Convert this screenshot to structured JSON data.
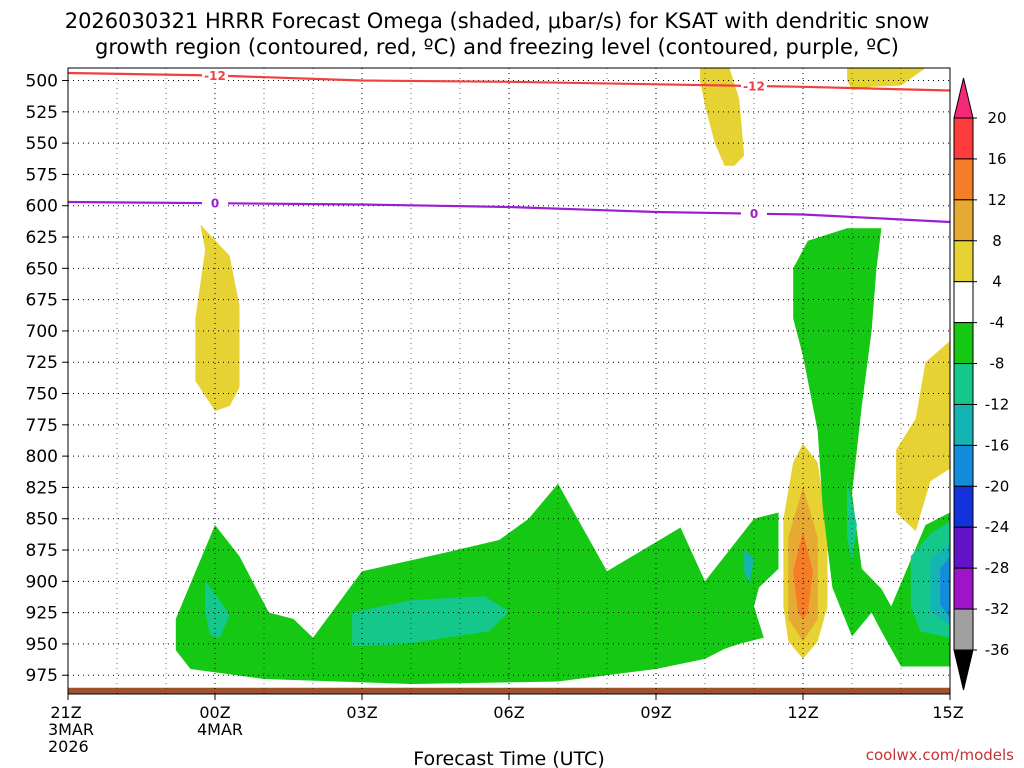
{
  "chart_data": {
    "type": "time-height cross-section",
    "title_line1": "2026030321 HRRR Forecast Omega (shaded, μbar/s) for KSAT with dendritic snow",
    "title_line2": "growth region (contoured, red, ºC) and freezing level (contoured, purple, ºC)",
    "xlabel": "Forecast Time (UTC)",
    "credit": "coolwx.com/models",
    "x_hours": [
      0,
      3,
      6,
      9,
      12,
      15,
      18
    ],
    "x_ticks": [
      {
        "hour": 0,
        "line1": "21Z",
        "line2": "3MAR",
        "line3": "2026"
      },
      {
        "hour": 3,
        "line1": "00Z",
        "line2": "4MAR",
        "line3": ""
      },
      {
        "hour": 6,
        "line1": "03Z",
        "line2": "",
        "line3": ""
      },
      {
        "hour": 9,
        "line1": "06Z",
        "line2": "",
        "line3": ""
      },
      {
        "hour": 12,
        "line1": "09Z",
        "line2": "",
        "line3": ""
      },
      {
        "hour": 15,
        "line1": "12Z",
        "line2": "",
        "line3": ""
      },
      {
        "hour": 18,
        "line1": "15Z",
        "line2": "",
        "line3": ""
      }
    ],
    "y_ticks": [
      500,
      525,
      550,
      575,
      600,
      625,
      650,
      675,
      700,
      725,
      750,
      775,
      800,
      825,
      850,
      875,
      900,
      925,
      950,
      975
    ],
    "ylim": [
      490,
      990
    ],
    "colorbar": {
      "labels": [
        "20",
        "16",
        "12",
        "8",
        "4",
        "-4",
        "-8",
        "-12",
        "-16",
        "-20",
        "-24",
        "-28",
        "-32",
        "-36"
      ],
      "colors": [
        "#f52878",
        "#ff3c3c",
        "#f57d28",
        "#e6aa32",
        "#e6d232",
        "#ffffff",
        "#14c814",
        "#14c88c",
        "#14b4b4",
        "#148cdc",
        "#1432dc",
        "#6414c8",
        "#a014c8",
        "#a0a0a0",
        "#000000"
      ]
    },
    "contours": [
      {
        "name": "dendritic -12C",
        "color": "#f04040",
        "label": "-12",
        "points": [
          [
            0,
            494
          ],
          [
            3,
            496
          ],
          [
            6,
            500
          ],
          [
            9,
            501
          ],
          [
            12,
            503
          ],
          [
            15,
            505
          ],
          [
            18,
            508
          ]
        ]
      },
      {
        "name": "freezing level 0C",
        "color": "#9b1fd0",
        "label": "0",
        "points": [
          [
            0,
            597
          ],
          [
            3,
            598
          ],
          [
            6,
            599
          ],
          [
            9,
            601
          ],
          [
            12,
            605
          ],
          [
            15,
            607
          ],
          [
            16.5,
            610
          ],
          [
            18,
            613
          ]
        ]
      }
    ],
    "terrain": {
      "color": "#a0522d",
      "top_pressure": 985
    },
    "omega_regions": [
      {
        "value": "4 to 8",
        "color": "#e6d232",
        "points": [
          [
            2.7,
            615
          ],
          [
            3.3,
            640
          ],
          [
            3.5,
            680
          ],
          [
            3.5,
            745
          ],
          [
            3.3,
            760
          ],
          [
            3,
            764
          ],
          [
            2.6,
            740
          ],
          [
            2.6,
            690
          ],
          [
            2.8,
            635
          ]
        ]
      },
      {
        "value": "4 to 8",
        "color": "#e6d232",
        "points": [
          [
            12.9,
            490
          ],
          [
            13.5,
            490
          ],
          [
            13.7,
            515
          ],
          [
            13.8,
            560
          ],
          [
            13.6,
            568
          ],
          [
            13.4,
            568
          ],
          [
            13.2,
            550
          ],
          [
            13,
            520
          ],
          [
            12.9,
            500
          ]
        ]
      },
      {
        "value": "4 to 8",
        "color": "#e6d232",
        "points": [
          [
            15.9,
            490
          ],
          [
            17.5,
            490
          ],
          [
            17,
            504
          ],
          [
            16.4,
            505
          ],
          [
            16,
            508
          ],
          [
            15.9,
            500
          ]
        ]
      },
      {
        "value": "4 to 8",
        "color": "#e6d232",
        "points": [
          [
            18,
            708
          ],
          [
            17.5,
            725
          ],
          [
            17.3,
            770
          ],
          [
            16.9,
            795
          ],
          [
            16.9,
            845
          ],
          [
            17.3,
            860
          ],
          [
            17.6,
            820
          ],
          [
            18,
            810
          ]
        ]
      },
      {
        "value": "4 to 8",
        "color": "#e6d232",
        "points": [
          [
            15,
            790
          ],
          [
            14.8,
            805
          ],
          [
            14.6,
            850
          ],
          [
            14.6,
            920
          ],
          [
            14.7,
            948
          ],
          [
            15,
            962
          ],
          [
            15.3,
            948
          ],
          [
            15.5,
            920
          ],
          [
            15.5,
            860
          ],
          [
            15.3,
            805
          ]
        ]
      },
      {
        "value": "-4 to -8",
        "color": "#14c814",
        "points": [
          [
            3,
            855
          ],
          [
            3.5,
            880
          ],
          [
            4.1,
            925
          ],
          [
            4.6,
            930
          ],
          [
            5,
            945
          ],
          [
            6,
            892
          ],
          [
            7.6,
            878
          ],
          [
            8.8,
            867
          ],
          [
            9.4,
            850
          ],
          [
            10,
            822
          ],
          [
            11,
            892
          ],
          [
            12.5,
            857
          ],
          [
            13,
            900
          ],
          [
            14,
            850
          ],
          [
            14.5,
            845
          ],
          [
            14.5,
            890
          ],
          [
            14.1,
            905
          ],
          [
            14,
            920
          ],
          [
            14.2,
            945
          ],
          [
            13.7,
            950
          ],
          [
            13.4,
            954
          ],
          [
            13,
            962
          ],
          [
            12,
            970
          ],
          [
            10,
            980
          ],
          [
            7,
            982
          ],
          [
            4,
            978
          ],
          [
            2.5,
            970
          ],
          [
            2.2,
            955
          ],
          [
            2.2,
            930
          ]
        ]
      },
      {
        "value": "-4 to -8",
        "color": "#14c814",
        "points": [
          [
            15.9,
            618
          ],
          [
            16.6,
            618
          ],
          [
            16.5,
            650
          ],
          [
            16.4,
            700
          ],
          [
            16.2,
            760
          ],
          [
            16,
            830
          ],
          [
            16.2,
            890
          ],
          [
            16.6,
            906
          ],
          [
            16.8,
            920
          ],
          [
            17.5,
            855
          ],
          [
            18,
            845
          ],
          [
            18,
            968
          ],
          [
            17,
            968
          ],
          [
            16.6,
            940
          ],
          [
            16.4,
            925
          ],
          [
            16,
            944
          ],
          [
            15.6,
            905
          ],
          [
            15.4,
            840
          ],
          [
            15.3,
            780
          ],
          [
            15,
            720
          ],
          [
            14.8,
            690
          ],
          [
            14.8,
            650
          ],
          [
            15.1,
            628
          ]
        ]
      },
      {
        "value": "-8 to -12",
        "color": "#14c88c",
        "points": [
          [
            2.8,
            900
          ],
          [
            3.1,
            915
          ],
          [
            3.3,
            927
          ],
          [
            3.1,
            945
          ],
          [
            2.9,
            943
          ],
          [
            2.8,
            925
          ]
        ]
      },
      {
        "value": "-8 to -12",
        "color": "#14c88c",
        "points": [
          [
            5.8,
            925
          ],
          [
            7,
            915
          ],
          [
            8.5,
            912
          ],
          [
            9,
            924
          ],
          [
            8.6,
            940
          ],
          [
            7.7,
            945
          ],
          [
            6.9,
            950
          ],
          [
            5.8,
            952
          ]
        ]
      },
      {
        "value": "-8 to -12",
        "color": "#14c88c",
        "points": [
          [
            17.2,
            880
          ],
          [
            17.6,
            862
          ],
          [
            18,
            852
          ],
          [
            18,
            945
          ],
          [
            17.4,
            940
          ],
          [
            17.2,
            920
          ]
        ]
      },
      {
        "value": "-12 to -16",
        "color": "#14b4b4",
        "points": [
          [
            17.6,
            882
          ],
          [
            18,
            870
          ],
          [
            18,
            935
          ],
          [
            17.6,
            925
          ]
        ]
      },
      {
        "value": "-16 to -20",
        "color": "#148cdc",
        "points": [
          [
            17.8,
            890
          ],
          [
            18,
            880
          ],
          [
            18,
            930
          ],
          [
            17.8,
            918
          ]
        ]
      },
      {
        "value": "-12 to -16",
        "color": "#14b4b4",
        "points": [
          [
            13.8,
            875
          ],
          [
            14,
            882
          ],
          [
            13.9,
            902
          ],
          [
            13.8,
            892
          ]
        ]
      },
      {
        "value": "-8 to -12",
        "color": "#14c88c",
        "points": [
          [
            15.9,
            820
          ],
          [
            16.1,
            855
          ],
          [
            16,
            885
          ],
          [
            15.9,
            865
          ]
        ]
      },
      {
        "value": "8 to 12",
        "color": "#e6aa32",
        "points": [
          [
            15,
            825
          ],
          [
            15.3,
            865
          ],
          [
            15.3,
            930
          ],
          [
            15,
            948
          ],
          [
            14.7,
            930
          ],
          [
            14.7,
            865
          ]
        ]
      },
      {
        "value": "12 to 16",
        "color": "#f57d28",
        "points": [
          [
            15,
            860
          ],
          [
            15.2,
            892
          ],
          [
            15.1,
            925
          ],
          [
            15,
            930
          ],
          [
            14.9,
            925
          ],
          [
            14.8,
            892
          ]
        ]
      }
    ]
  }
}
